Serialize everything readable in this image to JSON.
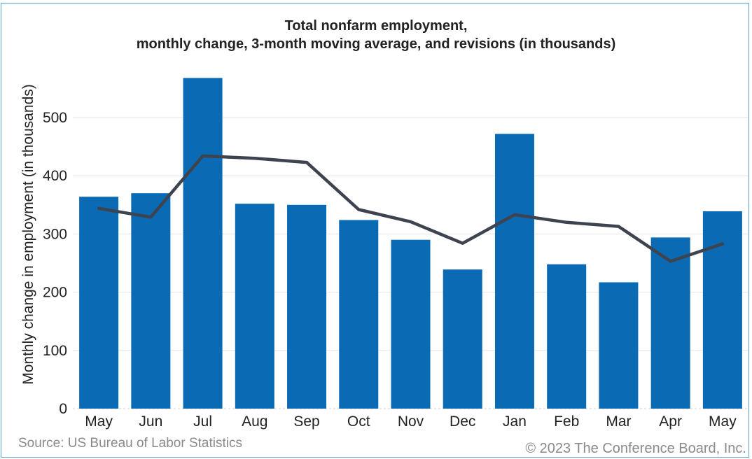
{
  "chart_data": {
    "type": "bar",
    "title": "Total nonfarm employment,",
    "subtitle": "monthly change, 3-month moving average, and revisions (in thousands)",
    "ylabel": "Monthly change in employment (in thousands)",
    "xlabel": "",
    "categories": [
      "May",
      "Jun",
      "Jul",
      "Aug",
      "Sep",
      "Oct",
      "Nov",
      "Dec",
      "Jan",
      "Feb",
      "Mar",
      "Apr",
      "May"
    ],
    "series": [
      {
        "type": "bar",
        "color": "#0a6ab4",
        "values": [
          364,
          370,
          568,
          352,
          350,
          324,
          290,
          239,
          472,
          248,
          217,
          294,
          339
        ]
      },
      {
        "type": "line",
        "color": "#3d4450",
        "values": [
          344,
          329,
          434,
          430,
          423,
          342,
          321,
          284,
          333,
          320,
          313,
          253,
          283
        ]
      }
    ],
    "yticks": [
      0,
      100,
      200,
      300,
      400,
      500
    ],
    "ylim": [
      0,
      575
    ],
    "grid": true
  },
  "footer": {
    "source": "Source: US Bureau of Labor Statistics",
    "copyright": "© 2023 The Conference Board, Inc."
  }
}
